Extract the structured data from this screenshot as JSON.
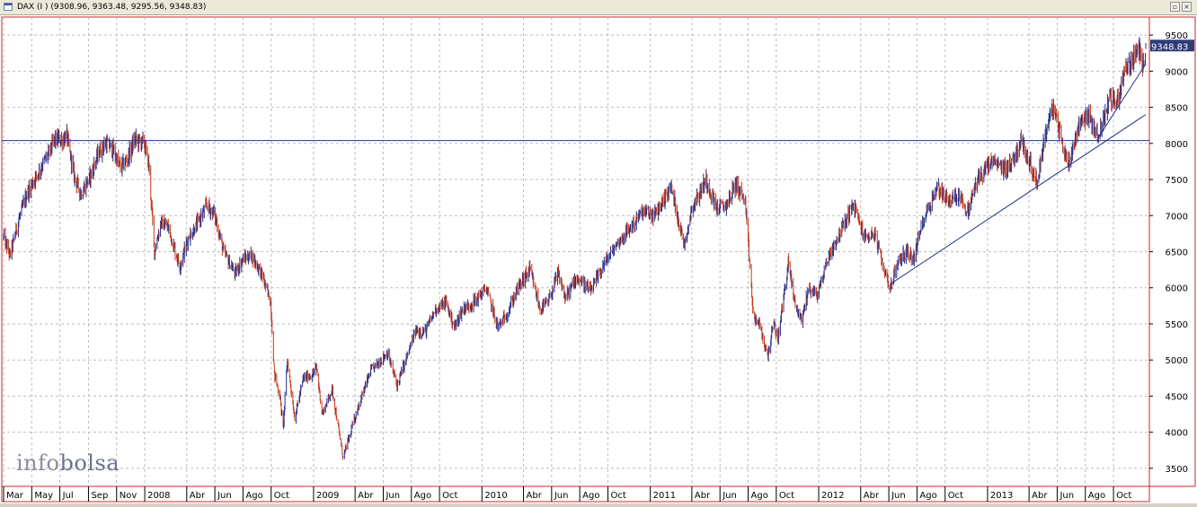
{
  "window": {
    "title": "DAX (I ) (9308.96, 9363.48, 9295.56, 9348.83)",
    "restore_glyph": "▫",
    "close_glyph": "×"
  },
  "logo": {
    "part1": "info",
    "part2": "bolsa"
  },
  "chart_data": {
    "type": "line",
    "title": "DAX (I ) (9308.96, 9363.48, 9295.56, 9348.83)",
    "last_value_label": "9348.83",
    "ylim": [
      3250,
      9750
    ],
    "y_ticks": [
      3500,
      4000,
      4500,
      5000,
      5500,
      6000,
      6500,
      7000,
      7500,
      8000,
      8500,
      9000,
      9500
    ],
    "y_tick_labels": [
      "3500",
      "4000",
      "4500",
      "5000",
      "5500",
      "6000",
      "6500",
      "7000",
      "7500",
      "8000",
      "8500",
      "9000",
      "9500"
    ],
    "x_start": "2007-03-01",
    "x_end": "2013-12-10",
    "x_ticks": [
      {
        "date": "2007-03-01",
        "label": "Mar"
      },
      {
        "date": "2007-05-01",
        "label": "May"
      },
      {
        "date": "2007-07-01",
        "label": "Jul"
      },
      {
        "date": "2007-09-01",
        "label": "Sep"
      },
      {
        "date": "2007-11-01",
        "label": "Nov"
      },
      {
        "date": "2008-01-01",
        "label": "2008"
      },
      {
        "date": "2008-04-01",
        "label": "Abr"
      },
      {
        "date": "2008-06-01",
        "label": "Jun"
      },
      {
        "date": "2008-08-01",
        "label": "Ago"
      },
      {
        "date": "2008-10-01",
        "label": "Oct"
      },
      {
        "date": "2009-01-01",
        "label": "2009"
      },
      {
        "date": "2009-04-01",
        "label": "Abr"
      },
      {
        "date": "2009-06-01",
        "label": "Jun"
      },
      {
        "date": "2009-08-01",
        "label": "Ago"
      },
      {
        "date": "2009-10-01",
        "label": "Oct"
      },
      {
        "date": "2010-01-01",
        "label": "2010"
      },
      {
        "date": "2010-04-01",
        "label": "Abr"
      },
      {
        "date": "2010-06-01",
        "label": "Jun"
      },
      {
        "date": "2010-08-01",
        "label": "Ago"
      },
      {
        "date": "2010-10-01",
        "label": "Oct"
      },
      {
        "date": "2011-01-01",
        "label": "2011"
      },
      {
        "date": "2011-04-01",
        "label": "Abr"
      },
      {
        "date": "2011-06-01",
        "label": "Jun"
      },
      {
        "date": "2011-08-01",
        "label": "Ago"
      },
      {
        "date": "2011-10-01",
        "label": "Oct"
      },
      {
        "date": "2012-01-01",
        "label": "2012"
      },
      {
        "date": "2012-04-01",
        "label": "Abr"
      },
      {
        "date": "2012-06-01",
        "label": "Jun"
      },
      {
        "date": "2012-08-01",
        "label": "Ago"
      },
      {
        "date": "2012-10-01",
        "label": "Oct"
      },
      {
        "date": "2013-01-01",
        "label": "2013"
      },
      {
        "date": "2013-04-01",
        "label": "Abr"
      },
      {
        "date": "2013-06-01",
        "label": "Jun"
      },
      {
        "date": "2013-08-01",
        "label": "Ago"
      },
      {
        "date": "2013-10-01",
        "label": "Oct"
      }
    ],
    "grid": true,
    "series": [
      {
        "points": [
          [
            "2007-03-01",
            6700
          ],
          [
            "2007-03-15",
            6450
          ],
          [
            "2007-04-01",
            6900
          ],
          [
            "2007-04-20",
            7300
          ],
          [
            "2007-05-15",
            7600
          ],
          [
            "2007-06-10",
            7900
          ],
          [
            "2007-06-20",
            8050
          ],
          [
            "2007-07-05",
            8050
          ],
          [
            "2007-07-16",
            8100
          ],
          [
            "2007-08-01",
            7550
          ],
          [
            "2007-08-16",
            7300
          ],
          [
            "2007-09-05",
            7550
          ],
          [
            "2007-09-25",
            7900
          ],
          [
            "2007-10-10",
            8000
          ],
          [
            "2007-10-25",
            7900
          ],
          [
            "2007-11-10",
            7650
          ],
          [
            "2007-11-25",
            7800
          ],
          [
            "2007-12-10",
            8050
          ],
          [
            "2007-12-31",
            8000
          ],
          [
            "2008-01-10",
            7700
          ],
          [
            "2008-01-22",
            6500
          ],
          [
            "2008-02-05",
            6900
          ],
          [
            "2008-02-20",
            6850
          ],
          [
            "2008-03-17",
            6300
          ],
          [
            "2008-04-05",
            6700
          ],
          [
            "2008-04-25",
            6900
          ],
          [
            "2008-05-15",
            7150
          ],
          [
            "2008-06-01",
            7000
          ],
          [
            "2008-06-20",
            6500
          ],
          [
            "2008-07-15",
            6200
          ],
          [
            "2008-08-01",
            6400
          ],
          [
            "2008-08-20",
            6450
          ],
          [
            "2008-09-10",
            6200
          ],
          [
            "2008-09-30",
            5800
          ],
          [
            "2008-10-08",
            4800
          ],
          [
            "2008-10-20",
            4500
          ],
          [
            "2008-10-27",
            4050
          ],
          [
            "2008-11-05",
            5000
          ],
          [
            "2008-11-21",
            4200
          ],
          [
            "2008-12-10",
            4750
          ],
          [
            "2008-12-31",
            4800
          ],
          [
            "2009-01-07",
            4900
          ],
          [
            "2009-01-20",
            4250
          ],
          [
            "2009-02-10",
            4600
          ],
          [
            "2009-03-06",
            3650
          ],
          [
            "2009-03-20",
            3950
          ],
          [
            "2009-04-10",
            4400
          ],
          [
            "2009-05-05",
            4850
          ],
          [
            "2009-05-20",
            4950
          ],
          [
            "2009-06-10",
            5100
          ],
          [
            "2009-07-01",
            4650
          ],
          [
            "2009-07-20",
            5000
          ],
          [
            "2009-08-10",
            5400
          ],
          [
            "2009-09-01",
            5400
          ],
          [
            "2009-09-22",
            5700
          ],
          [
            "2009-10-15",
            5800
          ],
          [
            "2009-11-02",
            5450
          ],
          [
            "2009-11-20",
            5700
          ],
          [
            "2009-12-15",
            5800
          ],
          [
            "2010-01-10",
            6000
          ],
          [
            "2010-02-05",
            5450
          ],
          [
            "2010-02-25",
            5650
          ],
          [
            "2010-03-20",
            6000
          ],
          [
            "2010-04-15",
            6250
          ],
          [
            "2010-05-07",
            5700
          ],
          [
            "2010-05-25",
            5800
          ],
          [
            "2010-06-15",
            6200
          ],
          [
            "2010-07-01",
            5850
          ],
          [
            "2010-07-25",
            6150
          ],
          [
            "2010-08-25",
            5950
          ],
          [
            "2010-09-20",
            6300
          ],
          [
            "2010-10-20",
            6600
          ],
          [
            "2010-11-15",
            6800
          ],
          [
            "2010-12-15",
            7050
          ],
          [
            "2011-01-10",
            7000
          ],
          [
            "2011-02-15",
            7400
          ],
          [
            "2011-03-15",
            6600
          ],
          [
            "2011-04-01",
            7100
          ],
          [
            "2011-05-02",
            7500
          ],
          [
            "2011-05-25",
            7100
          ],
          [
            "2011-06-15",
            7150
          ],
          [
            "2011-07-05",
            7450
          ],
          [
            "2011-07-25",
            7200
          ],
          [
            "2011-08-05",
            6300
          ],
          [
            "2011-08-12",
            5600
          ],
          [
            "2011-08-25",
            5500
          ],
          [
            "2011-09-12",
            5050
          ],
          [
            "2011-09-25",
            5500
          ],
          [
            "2011-10-05",
            5300
          ],
          [
            "2011-10-27",
            6350
          ],
          [
            "2011-11-10",
            5800
          ],
          [
            "2011-11-25",
            5550
          ],
          [
            "2011-12-10",
            6000
          ],
          [
            "2011-12-30",
            5900
          ],
          [
            "2012-01-20",
            6400
          ],
          [
            "2012-02-15",
            6750
          ],
          [
            "2012-03-16",
            7150
          ],
          [
            "2012-04-10",
            6700
          ],
          [
            "2012-05-01",
            6750
          ],
          [
            "2012-05-15",
            6400
          ],
          [
            "2012-06-04",
            6000
          ],
          [
            "2012-06-20",
            6350
          ],
          [
            "2012-07-10",
            6500
          ],
          [
            "2012-07-25",
            6400
          ],
          [
            "2012-08-15",
            6950
          ],
          [
            "2012-09-15",
            7400
          ],
          [
            "2012-10-10",
            7200
          ],
          [
            "2012-11-05",
            7300
          ],
          [
            "2012-11-16",
            7000
          ],
          [
            "2012-12-10",
            7500
          ],
          [
            "2013-01-10",
            7750
          ],
          [
            "2013-02-05",
            7650
          ],
          [
            "2013-02-25",
            7750
          ],
          [
            "2013-03-15",
            8050
          ],
          [
            "2013-04-05",
            7700
          ],
          [
            "2013-04-18",
            7450
          ],
          [
            "2013-05-05",
            8100
          ],
          [
            "2013-05-22",
            8500
          ],
          [
            "2013-06-05",
            8200
          ],
          [
            "2013-06-24",
            7700
          ],
          [
            "2013-07-05",
            7950
          ],
          [
            "2013-07-20",
            8300
          ],
          [
            "2013-08-05",
            8400
          ],
          [
            "2013-08-30",
            8100
          ],
          [
            "2013-09-10",
            8350
          ],
          [
            "2013-09-23",
            8650
          ],
          [
            "2013-10-08",
            8550
          ],
          [
            "2013-10-25",
            9000
          ],
          [
            "2013-11-10",
            9150
          ],
          [
            "2013-11-25",
            9300
          ],
          [
            "2013-12-03",
            9100
          ],
          [
            "2013-12-10",
            9349
          ]
        ]
      }
    ],
    "horizontal_line": {
      "value": 8040
    },
    "trendlines": [
      {
        "from": [
          "2012-06-04",
          6050
        ],
        "to": [
          "2013-12-10",
          8400
        ]
      },
      {
        "from": [
          "2013-08-30",
          8090
        ],
        "to": [
          "2013-12-10",
          9100
        ]
      }
    ],
    "colors": {
      "frame": "#c62828",
      "axis_text": "#000000",
      "grid": "#bdbdbd",
      "bar_up": "#26308c",
      "bar_down": "#c0391b",
      "reference_line": "#1f3a8c",
      "trendline": "#1f2f8f",
      "last_label_bg": "#2d3c78"
    }
  }
}
